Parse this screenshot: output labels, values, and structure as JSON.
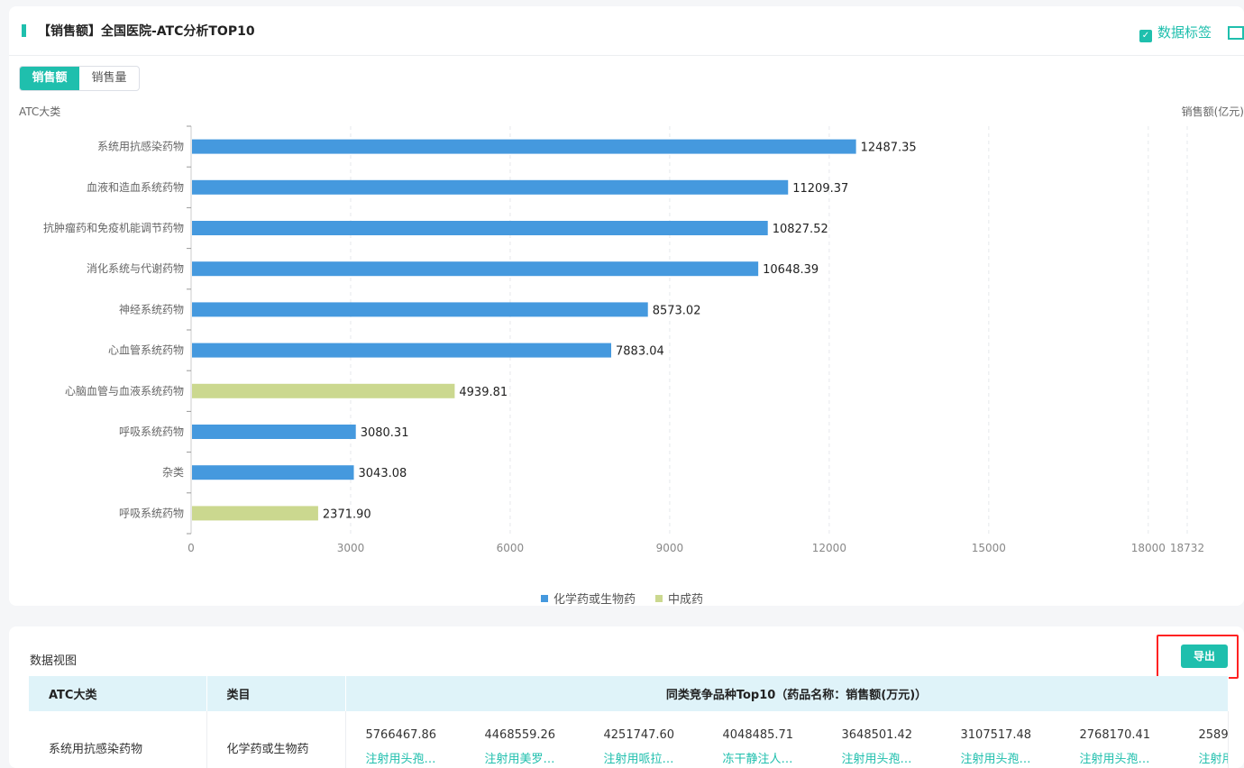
{
  "header": {
    "title": "【销售额】全国医院-ATC分析TOP10",
    "data_label_toggle": "数据标签",
    "checked": true
  },
  "tabs": [
    {
      "label": "销售额",
      "active": true
    },
    {
      "label": "销售量",
      "active": false
    }
  ],
  "chart_data": {
    "type": "bar",
    "orientation": "horizontal",
    "ylabel": "ATC大类",
    "xlabel": "销售额(亿元)",
    "categories": [
      "系统用抗感染药物",
      "血液和造血系统药物",
      "抗肿瘤药和免疫机能调节药物",
      "消化系统与代谢药物",
      "神经系统药物",
      "心血管系统药物",
      "心脑血管与血液系统药物",
      "呼吸系统药物",
      "杂类",
      "呼吸系统药物"
    ],
    "values": [
      12487.35,
      11209.37,
      10827.52,
      10648.39,
      8573.02,
      7883.04,
      4939.81,
      3080.31,
      3043.08,
      2371.9
    ],
    "labels": [
      "12487.35",
      "11209.37",
      "10827.52",
      "10648.39",
      "8573.02",
      "7883.04",
      "4939.81",
      "3080.31",
      "3043.08",
      "2371.90"
    ],
    "series_of": [
      0,
      0,
      0,
      0,
      0,
      0,
      1,
      0,
      0,
      1
    ],
    "series": [
      {
        "name": "化学药或生物药",
        "color": "#4599de"
      },
      {
        "name": "中成药",
        "color": "#cbd88f"
      }
    ],
    "xticks": [
      0,
      3000,
      6000,
      9000,
      12000,
      15000,
      18000,
      18732
    ],
    "xlim": [
      0,
      18732
    ],
    "grid": true,
    "legend": "bottom"
  },
  "table": {
    "title": "数据视图",
    "export_label": "导出",
    "headers": [
      "ATC大类",
      "类目",
      "同类竞争品种Top10（药品名称：销售额(万元)）"
    ],
    "rows": [
      {
        "atc": "系统用抗感染药物",
        "cat": "化学药或生物药",
        "items": [
          {
            "v": "5766467.86",
            "n": "注射用头孢…"
          },
          {
            "v": "4468559.26",
            "n": "注射用美罗…"
          },
          {
            "v": "4251747.60",
            "n": "注射用哌拉…"
          },
          {
            "v": "4048485.71",
            "n": "冻干静注人…"
          },
          {
            "v": "3648501.42",
            "n": "注射用头孢…"
          },
          {
            "v": "3107517.48",
            "n": "注射用头孢…"
          },
          {
            "v": "2768170.41",
            "n": "注射用头孢…"
          },
          {
            "v": "2589",
            "n": "注射用"
          }
        ]
      }
    ]
  }
}
